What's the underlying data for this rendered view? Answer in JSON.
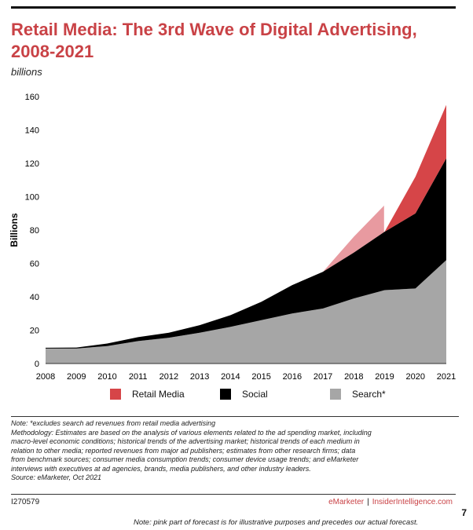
{
  "header": {
    "title": "Retail Media: The 3rd Wave of Digital Advertising, 2008-2021",
    "units": "billions"
  },
  "chart_data": {
    "type": "area",
    "stacked": true,
    "title": "Retail Media: The 3rd Wave of Digital Advertising, 2008-2021",
    "ylabel": "Billions",
    "xlabel": "",
    "ylim": [
      0,
      160
    ],
    "yticks": [
      0,
      20,
      40,
      60,
      80,
      100,
      120,
      140,
      160
    ],
    "x": [
      2008,
      2009,
      2010,
      2011,
      2012,
      2013,
      2014,
      2015,
      2016,
      2017,
      2018,
      2019,
      2020,
      2021
    ],
    "series": [
      {
        "name": "Search*",
        "color": "#a6a6a6",
        "values": [
          9,
          9,
          10.5,
          13.5,
          15.5,
          18.5,
          22,
          26,
          30,
          33,
          39,
          44,
          45,
          62
        ]
      },
      {
        "name": "Social",
        "color": "#000000",
        "values": [
          0.5,
          0.6,
          1.5,
          2.3,
          3,
          4.5,
          7,
          11,
          17,
          22,
          27.5,
          35,
          45,
          61
        ]
      },
      {
        "name": "Retail Media",
        "color": "#d64548",
        "values": [
          0,
          0,
          0,
          0,
          0,
          0,
          0,
          0,
          0,
          0,
          0,
          0,
          22,
          32
        ]
      }
    ],
    "illustrative_overlay": {
      "color": "#e89aa0",
      "x": [
        2017,
        2018,
        2019
      ],
      "top": [
        55,
        76,
        95
      ]
    },
    "grid": false,
    "legend_position": "bottom"
  },
  "legend": [
    {
      "label": "Retail Media",
      "color": "#d64548"
    },
    {
      "label": "Social",
      "color": "#000000"
    },
    {
      "label": "Search*",
      "color": "#a6a6a6"
    }
  ],
  "notes": {
    "line1": "Note: *excludes search ad revenues from retail media advertising",
    "line2": "Methodology: Estimates are based on the analysis of various elements related to the ad spending market, including",
    "line3": "macro-level economic conditions; historical trends of the advertising market; historical trends of each medium in",
    "line4": "relation to other media; reported revenues from major ad publishers; estimates from other research firms; data",
    "line5": "from benchmark sources; consumer media consumption trends; consumer device usage trends; and eMarketer",
    "line6": "interviews with executives at ad agencies, brands, media publishers, and other industry leaders.",
    "line7": "Source: eMarketer, Oct 2021"
  },
  "footer": {
    "code": "I270579",
    "brand_left": "eMarketer",
    "separator": "|",
    "brand_right": "InsiderIntelligence.com",
    "page_number": "7",
    "bottom_note": "Note: pink part of forecast is for illustrative purposes and precedes our actual forecast."
  }
}
